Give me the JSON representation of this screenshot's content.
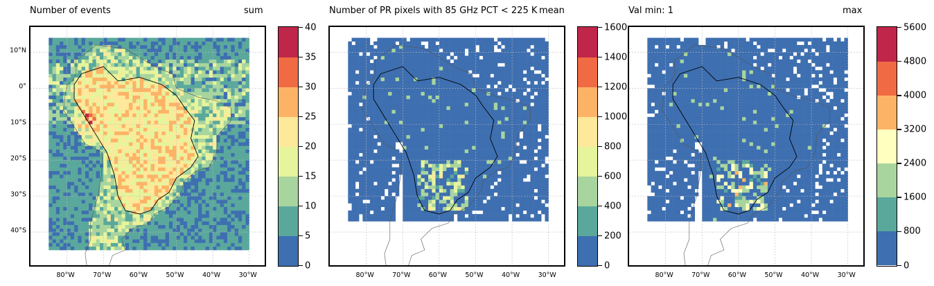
{
  "figure": {
    "lon_ticks": [
      "80°W",
      "70°W",
      "60°W",
      "50°W",
      "40°W",
      "30°W"
    ],
    "lat_ticks": [
      "10°N",
      "0°",
      "10°S",
      "20°S",
      "30°S",
      "40°S"
    ]
  },
  "panels": [
    {
      "title": "Number of events",
      "stat": "sum",
      "colorbar": {
        "boundaries": [
          0,
          5,
          10,
          15,
          20,
          25,
          30,
          35,
          40
        ],
        "labels": [
          "0",
          "5",
          "10",
          "15",
          "20",
          "25",
          "30",
          "35",
          "40"
        ]
      }
    },
    {
      "title": "Number of PR pixels with 85 GHz PCT < 225 K",
      "stat": "mean",
      "colorbar": {
        "boundaries": [
          0,
          200,
          400,
          600,
          800,
          1000,
          1200,
          1400,
          1600
        ],
        "labels": [
          "0",
          "200",
          "400",
          "600",
          "800",
          "1000",
          "1200",
          "1400",
          "1600"
        ]
      }
    },
    {
      "title": "Val min: 1",
      "stat": "max",
      "colorbar": {
        "boundaries": [
          0,
          800,
          1600,
          2400,
          3200,
          4000,
          4800,
          5600
        ],
        "labels": [
          "0",
          "800",
          "1600",
          "2400",
          "3200",
          "4000",
          "4800",
          "5600"
        ]
      }
    }
  ],
  "colors": {
    "spectral_8": [
      "#3e6fb0",
      "#5aa89c",
      "#a8d59e",
      "#e6f49c",
      "#fee89a",
      "#fdb366",
      "#f06b43",
      "#c0264a"
    ],
    "spectral_7": [
      "#3e6fb0",
      "#5aa89c",
      "#a8d59e",
      "#ffffbf",
      "#fdb366",
      "#f06b43",
      "#c0264a"
    ]
  },
  "chart_data": [
    {
      "type": "heatmap",
      "title": "Number of events",
      "stat": "sum",
      "region": "South America",
      "lon_range": [
        -90,
        -25
      ],
      "lat_range": [
        -50,
        17
      ],
      "data_extent_lon": [
        -85,
        -30
      ],
      "data_extent_lat": [
        -45,
        14
      ],
      "colorbar": {
        "min": 0,
        "max": 40,
        "step": 5
      },
      "description_values": {
        "background": 2.5,
        "amazon_andes": 22.5,
        "peak_peru_andes": 37.5
      }
    },
    {
      "type": "heatmap",
      "title": "Number of PR pixels with 85 GHz PCT < 225 K",
      "stat": "mean",
      "region": "South America",
      "lon_range": [
        -90,
        -25
      ],
      "lat_range": [
        -50,
        17
      ],
      "data_extent_lon": [
        -85,
        -30
      ],
      "data_extent_lat": [
        -37,
        14
      ],
      "colorbar": {
        "min": 0,
        "max": 1600,
        "step": 200
      },
      "description_values": {
        "background": 100,
        "la_plata_basin": 500,
        "peak": 900
      }
    },
    {
      "type": "heatmap",
      "title": "Val min: 1",
      "stat": "max",
      "region": "South America",
      "lon_range": [
        -90,
        -25
      ],
      "lat_range": [
        -50,
        17
      ],
      "data_extent_lon": [
        -85,
        -30
      ],
      "data_extent_lat": [
        -37,
        14
      ],
      "colorbar": {
        "min": 0,
        "max": 5600,
        "step": 800
      },
      "description_values": {
        "background": 400,
        "la_plata_basin": 2000,
        "peak": 3600
      }
    }
  ]
}
